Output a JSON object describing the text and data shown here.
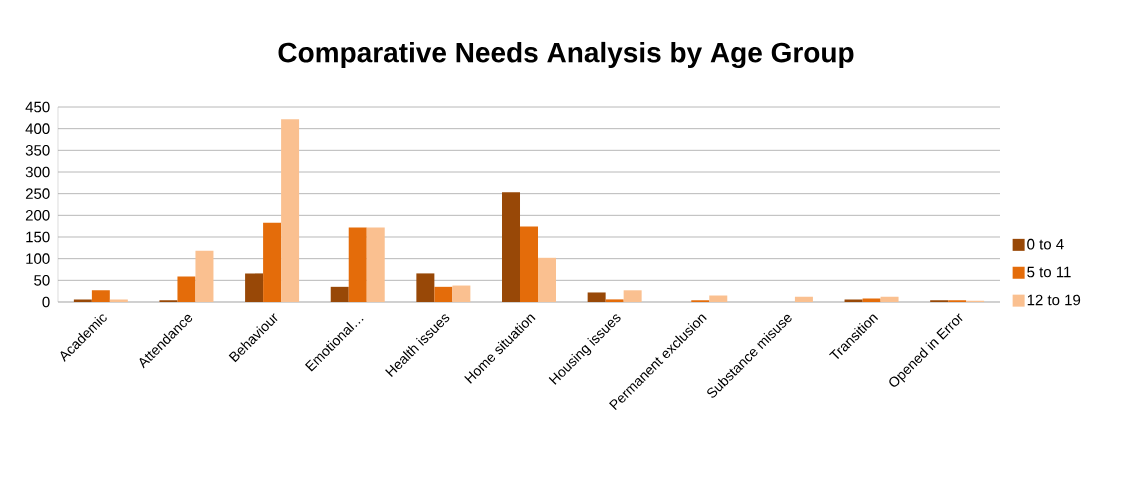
{
  "chart_data": {
    "type": "bar",
    "title": "Comparative Needs Analysis by Age Group",
    "categories": [
      "Academic",
      "Attendance",
      "Behaviour",
      "Emotional…",
      "Health issues",
      "Home situation",
      "Housing issues",
      "Permanent exclusion",
      "Substance misuse",
      "Transition",
      "Opened in Error"
    ],
    "series": [
      {
        "name": "0 to 4",
        "color": "#984807",
        "values": [
          6,
          4,
          66,
          35,
          66,
          253,
          22,
          0,
          0,
          6,
          4
        ]
      },
      {
        "name": "5 to 11",
        "color": "#e46c0a",
        "values": [
          27,
          59,
          183,
          172,
          35,
          174,
          6,
          4,
          0,
          8,
          4
        ]
      },
      {
        "name": "12 to 19",
        "color": "#fac090",
        "values": [
          6,
          118,
          422,
          172,
          38,
          102,
          27,
          15,
          12,
          12,
          3
        ]
      }
    ],
    "ylim": [
      0,
      450
    ],
    "yticks": [
      0,
      50,
      100,
      150,
      200,
      250,
      300,
      350,
      400,
      450
    ],
    "grid": "y",
    "legend": "right"
  }
}
